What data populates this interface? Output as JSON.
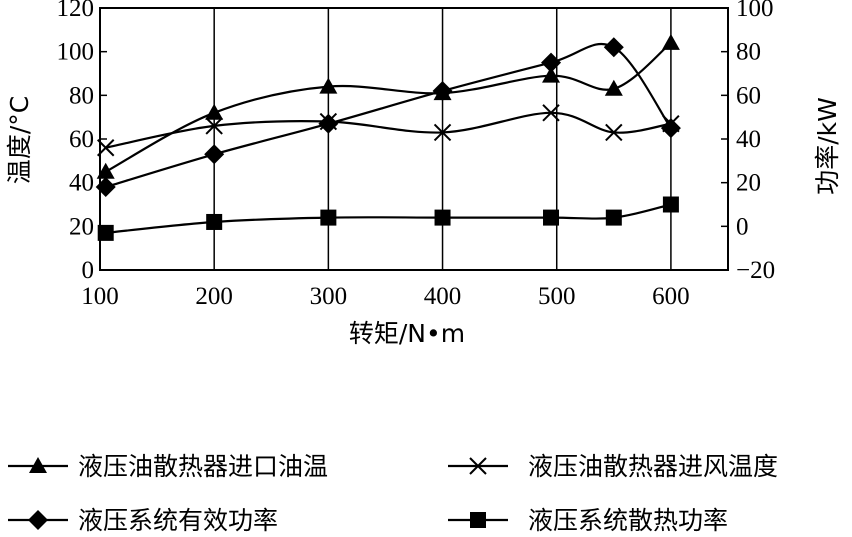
{
  "chart_data": {
    "type": "line",
    "xlabel": "转矩/N•m",
    "ylabel_left": "温度/°C",
    "ylabel_right": "功率/kW",
    "x_ticks": [
      100,
      200,
      300,
      400,
      500,
      600
    ],
    "left_ticks": [
      0,
      20,
      40,
      60,
      80,
      100,
      120
    ],
    "right_ticks": [
      "−20",
      "0",
      "20",
      "40",
      "60",
      "80",
      "100"
    ],
    "xlim": [
      100,
      650
    ],
    "ylim_left": [
      0,
      120
    ],
    "ylim_right": [
      -20,
      100
    ],
    "grid": "vertical",
    "legend_position": "bottom",
    "series": [
      {
        "name": "液压油散热器进口油温",
        "axis": "left",
        "marker": "triangle",
        "x": [
          105,
          200,
          300,
          400,
          495,
          550,
          600
        ],
        "y": [
          45,
          72,
          84,
          81,
          89,
          83,
          104
        ]
      },
      {
        "name": "液压油散热器进风温度",
        "axis": "left",
        "marker": "cross",
        "x": [
          105,
          200,
          300,
          400,
          495,
          550,
          600
        ],
        "y": [
          56,
          66,
          68,
          63,
          72,
          63,
          67
        ]
      },
      {
        "name": "液压系统有效功率",
        "axis": "right",
        "marker": "diamond",
        "x": [
          105,
          200,
          300,
          400,
          495,
          550,
          600
        ],
        "y": [
          18,
          33,
          47,
          62,
          75,
          82,
          45
        ]
      },
      {
        "name": "液压系统散热功率",
        "axis": "right",
        "marker": "square",
        "x": [
          105,
          200,
          300,
          400,
          495,
          550,
          600
        ],
        "y": [
          -3,
          2,
          4,
          4,
          4,
          4,
          10
        ]
      }
    ]
  }
}
